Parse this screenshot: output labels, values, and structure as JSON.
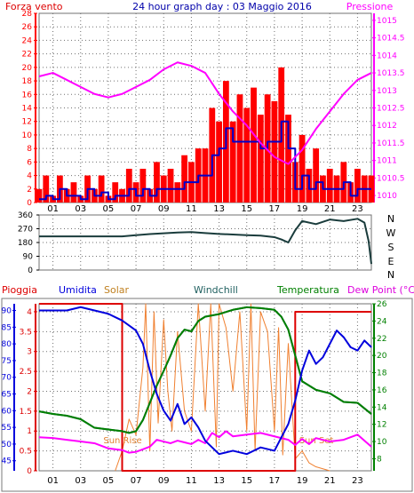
{
  "colors": {
    "wind": "#ff0000",
    "gust": "#0000cc",
    "pressure": "#ff00ff",
    "direction": "#1a3c3c",
    "rain": "#dd0000",
    "humidity": "#0000dd",
    "solar": "#f08030",
    "windchill": "#206060",
    "temperature": "#008000",
    "dewpoint": "#ff00ff",
    "grid": "#707070",
    "title": "#0000aa"
  },
  "chart_data": [
    {
      "type": "line",
      "title": "24 hour graph day : 03 Maggio 2016",
      "left_axis_label": "Forza vento",
      "right_axis_label": "Pressione",
      "x_ticks": [
        "01",
        "03",
        "05",
        "07",
        "09",
        "11",
        "13",
        "15",
        "17",
        "19",
        "21",
        "23"
      ],
      "x_range": [
        0,
        24
      ],
      "left_ticks": [
        "0",
        "2",
        "4",
        "6",
        "8",
        "10",
        "12",
        "14",
        "16",
        "18",
        "20",
        "22",
        "24",
        "26",
        "28"
      ],
      "left_range": [
        0,
        28
      ],
      "right_ticks": [
        "1010",
        "1010.5",
        "1011",
        "1011.5",
        "1012",
        "1012.5",
        "1013",
        "1013.5",
        "1014",
        "1014.5",
        "1015"
      ],
      "right_range": [
        1009.8,
        1015.2
      ],
      "grid": true,
      "series": [
        {
          "key": "gust",
          "x": [
            0,
            0.5,
            1,
            1.5,
            2,
            2.5,
            3,
            3.5,
            4,
            4.5,
            5,
            5.5,
            6,
            6.5,
            7,
            7.5,
            8,
            8.5,
            9,
            9.5,
            10,
            10.5,
            11,
            11.5,
            12,
            12.5,
            13,
            13.5,
            14,
            14.5,
            15,
            15.5,
            16,
            16.5,
            17,
            17.5,
            18,
            18.5,
            19,
            19.5,
            20,
            20.5,
            21,
            21.5,
            22,
            22.5,
            23,
            23.5,
            24
          ],
          "values": [
            2,
            4,
            1,
            4,
            2,
            3,
            1,
            4,
            2,
            4,
            1,
            3,
            2,
            5,
            3,
            5,
            2,
            6,
            4,
            5,
            3,
            7,
            6,
            8,
            8,
            14,
            12,
            18,
            12,
            16,
            14,
            17,
            13,
            16,
            15,
            20,
            13,
            6,
            10,
            5,
            8,
            4,
            5,
            4,
            6,
            3,
            5,
            4,
            4
          ]
        },
        {
          "key": "wind",
          "x": [
            0,
            0.5,
            1,
            1.5,
            2,
            2.5,
            3,
            3.5,
            4,
            4.5,
            5,
            5.5,
            6,
            6.5,
            7,
            7.5,
            8,
            8.5,
            9,
            9.5,
            10,
            10.5,
            11,
            11.5,
            12,
            12.5,
            13,
            13.5,
            14,
            14.5,
            15,
            15.5,
            16,
            16.5,
            17,
            17.5,
            18,
            18.5,
            19,
            19.5,
            20,
            20.5,
            21,
            21.5,
            22,
            22.5,
            23,
            23.5,
            24
          ],
          "values": [
            0.5,
            1,
            0.5,
            2,
            1,
            1,
            0.5,
            2,
            1,
            1.5,
            0.5,
            1,
            1,
            2,
            1,
            2,
            1,
            2,
            2,
            2,
            2,
            3,
            3,
            4,
            4,
            7,
            8,
            11,
            9,
            9,
            9,
            9,
            8,
            9,
            9,
            12,
            8,
            2,
            4,
            2,
            3,
            2,
            2,
            2,
            3,
            1,
            2,
            2,
            2
          ]
        },
        {
          "key": "pressure",
          "x": [
            0,
            1,
            2,
            3,
            4,
            5,
            6,
            7,
            8,
            9,
            10,
            11,
            12,
            13,
            14,
            15,
            16,
            17,
            18,
            19,
            20,
            21,
            22,
            23,
            24
          ],
          "values": [
            1013.4,
            1013.5,
            1013.3,
            1013.1,
            1012.9,
            1012.8,
            1012.9,
            1013.1,
            1013.3,
            1013.6,
            1013.8,
            1013.7,
            1013.5,
            1012.9,
            1012.4,
            1012.0,
            1011.5,
            1011.1,
            1010.9,
            1011.3,
            1011.9,
            1012.4,
            1012.9,
            1013.3,
            1013.5
          ]
        }
      ]
    },
    {
      "type": "line",
      "x_ticks": [
        "01",
        "03",
        "05",
        "07",
        "09",
        "11",
        "13",
        "15",
        "17",
        "19",
        "21",
        "23"
      ],
      "x_range": [
        0,
        24
      ],
      "left_ticks": [
        "0",
        "90",
        "180",
        "270",
        "360"
      ],
      "left_range": [
        0,
        360
      ],
      "compass_labels": [
        "N",
        "W",
        "S",
        "E",
        "N"
      ],
      "grid": true,
      "series": [
        {
          "key": "direction",
          "x": [
            0,
            2,
            4,
            6,
            7,
            8,
            9,
            10,
            11,
            12,
            13,
            14,
            15,
            16,
            17,
            17.5,
            18,
            18.5,
            19,
            20,
            21,
            22,
            23,
            23.5,
            23.8,
            24
          ],
          "values": [
            220,
            220,
            220,
            220,
            228,
            235,
            240,
            245,
            248,
            242,
            236,
            232,
            228,
            225,
            215,
            200,
            180,
            260,
            320,
            300,
            330,
            320,
            335,
            310,
            190,
            40
          ]
        }
      ]
    },
    {
      "type": "line",
      "legend": [
        "Pioggia",
        "Umidita",
        "Solar",
        "Windchill",
        "Temperatura",
        "Dew Point (°C)"
      ],
      "annotations": [
        "Sun Rise",
        "Sun Set"
      ],
      "x_ticks": [
        "01",
        "03",
        "05",
        "07",
        "09",
        "11",
        "13",
        "15",
        "17",
        "19",
        "21",
        "23"
      ],
      "x_range": [
        0,
        24
      ],
      "rain_ticks": [
        "0",
        "0.5",
        "1",
        "1.5",
        "2",
        "2.5",
        "3",
        "3.5",
        "4"
      ],
      "rain_range": [
        0,
        4.2
      ],
      "humidity_ticks": [
        "45",
        "50",
        "55",
        "60",
        "65",
        "70",
        "75",
        "80",
        "85",
        "90"
      ],
      "humidity_range": [
        42,
        92
      ],
      "temp_ticks": [
        "8",
        "10",
        "12",
        "14",
        "16",
        "18",
        "20",
        "22",
        "24",
        "26"
      ],
      "temp_range": [
        6.6,
        26
      ],
      "grid": true,
      "series": [
        {
          "key": "rain",
          "axis": "rain",
          "x": [
            0,
            5.5,
            6,
            7,
            8,
            9,
            10,
            11,
            12,
            13,
            14,
            15,
            16,
            17,
            18,
            18.5,
            19,
            24
          ],
          "values": [
            4.2,
            4.2,
            0,
            0,
            0,
            0,
            0,
            0,
            0,
            0,
            0,
            0,
            0,
            0,
            0,
            4,
            4,
            4
          ]
        },
        {
          "key": "humidity",
          "axis": "humidity",
          "x": [
            0,
            1,
            2,
            3,
            4,
            5,
            6,
            7,
            7.5,
            8,
            8.5,
            9,
            9.5,
            10,
            10.5,
            11,
            11.5,
            12,
            12.5,
            13,
            14,
            15,
            16,
            17,
            18,
            18.5,
            19,
            19.5,
            20,
            20.5,
            21,
            21.5,
            22,
            22.5,
            23,
            23.5,
            24
          ],
          "values": [
            90,
            90,
            90,
            91,
            90,
            89,
            87,
            84,
            80,
            72,
            65,
            60,
            57,
            62,
            56,
            58,
            55,
            51,
            49,
            47,
            48,
            47,
            49,
            48,
            56,
            63,
            72,
            78,
            74,
            76,
            80,
            84,
            82,
            79,
            78,
            81,
            79
          ]
        },
        {
          "key": "solar",
          "axis": "rain",
          "x": [
            5.5,
            6,
            6.5,
            7,
            7.5,
            7.7,
            8,
            8.3,
            8.6,
            9,
            9.3,
            9.6,
            10,
            10.5,
            11,
            11.5,
            12,
            12.4,
            12.8,
            13,
            13.5,
            14,
            14.5,
            15,
            15.3,
            15.6,
            16,
            16.5,
            17,
            17.3,
            17.6,
            18,
            18.5,
            19,
            19.5,
            20,
            20.5,
            21
          ],
          "values": [
            0,
            0.5,
            1.3,
            0.9,
            2.6,
            4.2,
            0.5,
            4.0,
            1.2,
            3.8,
            2.0,
            1.0,
            3.5,
            1.5,
            1.0,
            4.2,
            1.5,
            4.2,
            0.6,
            4.2,
            3.6,
            2.0,
            4.0,
            1.0,
            4.2,
            0.5,
            4.0,
            3.5,
            1.0,
            3.6,
            0.4,
            3.2,
            0.3,
            0.5,
            0.2,
            0.1,
            0.05,
            0
          ]
        },
        {
          "key": "windchill",
          "axis": "temp",
          "x": [
            0,
            1,
            2,
            3,
            4,
            5,
            6,
            6.5,
            7,
            7.5,
            8,
            8.5,
            9,
            9.5,
            10,
            10.5,
            11,
            11.5,
            12,
            13,
            14,
            15,
            16,
            17,
            17.5,
            18,
            18.5,
            19,
            20,
            21,
            22,
            23,
            24
          ],
          "values": [
            13.5,
            13.2,
            13.0,
            12.6,
            11.6,
            11.4,
            11.2,
            11.0,
            11.2,
            12.5,
            14.5,
            16.5,
            18.2,
            20,
            22,
            23,
            22.8,
            24,
            24.5,
            24.8,
            25.3,
            25.6,
            25.5,
            25.3,
            24.5,
            23,
            20,
            17,
            16,
            15.6,
            14.6,
            14.5,
            13.2
          ]
        },
        {
          "key": "temperature",
          "axis": "temp",
          "x": [
            0,
            1,
            2,
            3,
            4,
            5,
            6,
            6.5,
            7,
            7.5,
            8,
            8.5,
            9,
            9.5,
            10,
            10.5,
            11,
            11.5,
            12,
            13,
            14,
            15,
            16,
            17,
            17.5,
            18,
            18.5,
            19,
            20,
            21,
            22,
            23,
            24
          ],
          "values": [
            13.5,
            13.2,
            13.0,
            12.6,
            11.6,
            11.4,
            11.2,
            11.0,
            11.2,
            12.5,
            14.5,
            16.5,
            18.2,
            20,
            22,
            23,
            22.8,
            24,
            24.5,
            24.8,
            25.3,
            25.6,
            25.5,
            25.3,
            24.5,
            23,
            20,
            17,
            16,
            15.6,
            14.6,
            14.5,
            13.2
          ]
        },
        {
          "key": "dewpoint",
          "axis": "temp",
          "x": [
            0,
            1,
            2,
            3,
            4,
            5,
            6,
            6.5,
            7,
            7.5,
            8,
            8.5,
            9,
            9.5,
            10,
            10.5,
            11,
            11.5,
            12,
            12.5,
            13,
            13.5,
            14,
            15,
            16,
            17,
            18,
            18.5,
            19,
            19.5,
            20,
            21,
            22,
            23,
            24
          ],
          "values": [
            10.5,
            10.4,
            10.2,
            10.0,
            9.8,
            9.2,
            9.0,
            8.7,
            8.8,
            9.1,
            9.4,
            10.2,
            10.0,
            9.8,
            10.1,
            9.9,
            9.7,
            10.2,
            9.8,
            11.0,
            10.5,
            11.2,
            10.6,
            10.8,
            11.0,
            10.6,
            10.2,
            9.6,
            10.3,
            9.7,
            10.4,
            10.0,
            10.2,
            10.8,
            9.4
          ]
        }
      ]
    }
  ]
}
